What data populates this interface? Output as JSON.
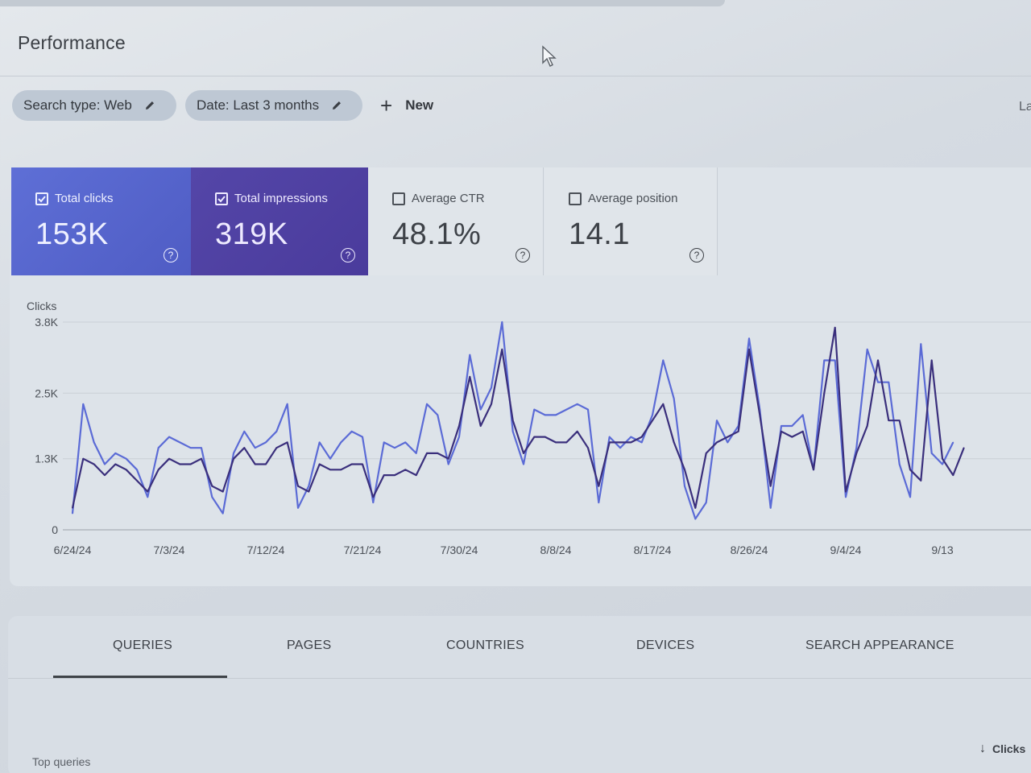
{
  "page": {
    "title": "Performance"
  },
  "filters": {
    "search_type": "Search type: Web",
    "date": "Date: Last 3 months",
    "new_label": "New",
    "edge_text": "La"
  },
  "metrics": {
    "clicks": {
      "label": "Total clicks",
      "value": "153K",
      "checked": true,
      "color": "#5b6bd6"
    },
    "impressions": {
      "label": "Total impressions",
      "value": "319K",
      "checked": true,
      "color": "#4b3d9f"
    },
    "ctr": {
      "label": "Average CTR",
      "value": "48.1%",
      "checked": false
    },
    "position": {
      "label": "Average position",
      "value": "14.1",
      "checked": false
    }
  },
  "chart_data": {
    "type": "line",
    "ylabel": "Clicks",
    "y_ticks": [
      "0",
      "1.3K",
      "2.5K",
      "3.8K"
    ],
    "y_tick_values": [
      0,
      1300,
      2500,
      3800
    ],
    "ylim": [
      0,
      3800
    ],
    "x_ticks": [
      "6/24/24",
      "7/3/24",
      "7/12/24",
      "7/21/24",
      "7/30/24",
      "8/8/24",
      "8/17/24",
      "8/26/24",
      "9/4/24",
      "9/13"
    ],
    "x_start": "6/24/24",
    "grid": true,
    "series": [
      {
        "color": "#5b6bd6",
        "values": [
          300,
          2300,
          1600,
          1200,
          1400,
          1300,
          1100,
          600,
          1500,
          1700,
          1600,
          1500,
          1500,
          600,
          300,
          1400,
          1800,
          1500,
          1600,
          1800,
          2300,
          400,
          800,
          1600,
          1300,
          1600,
          1800,
          1700,
          500,
          1600,
          1500,
          1600,
          1400,
          2300,
          2100,
          1200,
          1700,
          3200,
          2200,
          2600,
          3800,
          1800,
          1200,
          2200,
          2100,
          2100,
          2200,
          2300,
          2200,
          500,
          1700,
          1500,
          1700,
          1600,
          2100,
          3100,
          2400,
          800,
          200,
          500,
          2000,
          1600,
          1900,
          3500,
          2200,
          400,
          1900,
          1900,
          2100,
          1100,
          3100,
          3100,
          600,
          1500,
          3300,
          2700,
          2700,
          1200,
          600,
          3400,
          1400,
          1200,
          1600
        ]
      },
      {
        "color": "#3a2f7c",
        "values": [
          400,
          1300,
          1200,
          1000,
          1200,
          1100,
          900,
          700,
          1100,
          1300,
          1200,
          1200,
          1300,
          800,
          700,
          1300,
          1500,
          1200,
          1200,
          1500,
          1600,
          800,
          700,
          1200,
          1100,
          1100,
          1200,
          1200,
          600,
          1000,
          1000,
          1100,
          1000,
          1400,
          1400,
          1300,
          1900,
          2800,
          1900,
          2300,
          3300,
          2000,
          1400,
          1700,
          1700,
          1600,
          1600,
          1800,
          1500,
          800,
          1600,
          1600,
          1600,
          1700,
          2000,
          2300,
          1600,
          1100,
          400,
          1400,
          1600,
          1700,
          1800,
          3300,
          2100,
          800,
          1800,
          1700,
          1800,
          1100,
          2500,
          3700,
          700,
          1400,
          1900,
          3100,
          2000,
          2000,
          1100,
          900,
          3100,
          1300,
          1000,
          1500
        ]
      }
    ]
  },
  "tabs": [
    "QUERIES",
    "PAGES",
    "COUNTRIES",
    "DEVICES",
    "SEARCH APPEARANCE"
  ],
  "table": {
    "title": "Top queries",
    "sort_label": "Clicks"
  }
}
